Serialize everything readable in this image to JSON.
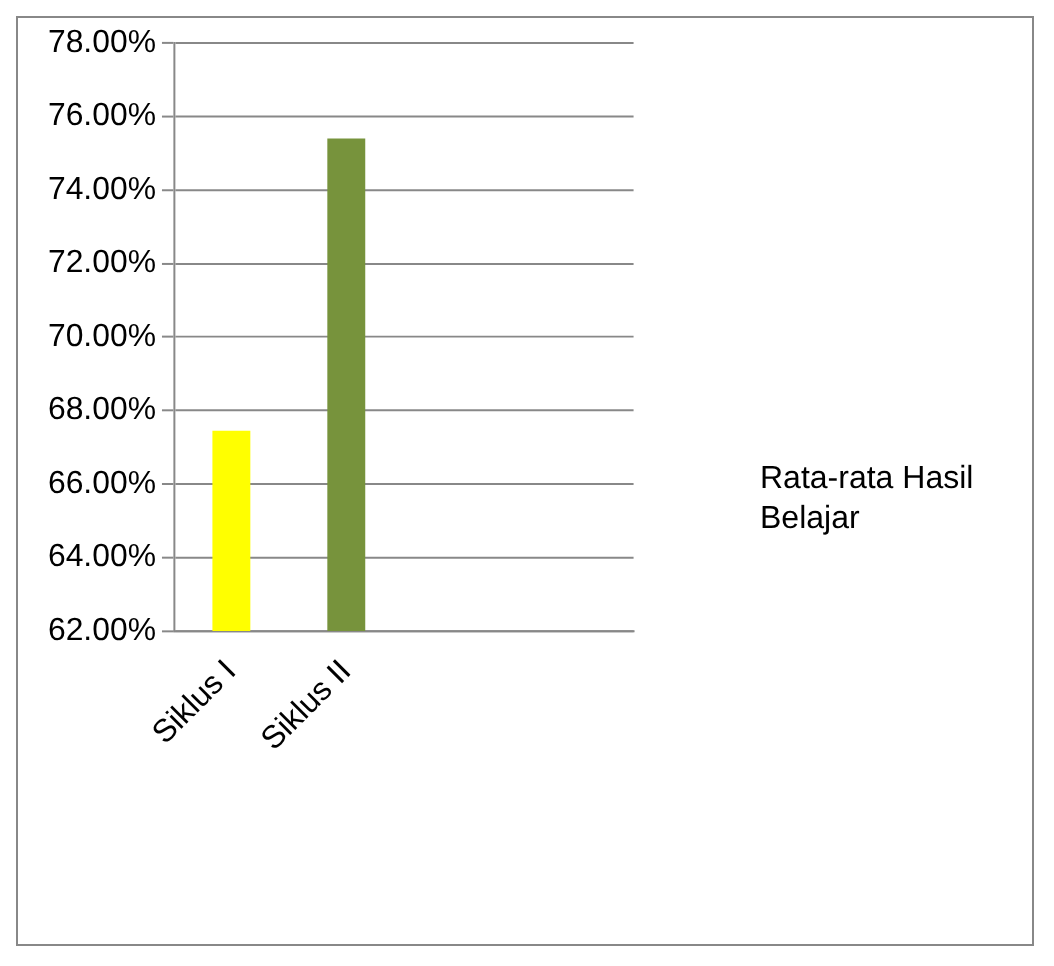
{
  "chart_data": {
    "type": "bar",
    "categories": [
      "Siklus I",
      "Siklus II",
      null,
      null
    ],
    "series": [
      {
        "name": "Rata-rata Hasil Belajar",
        "colors": [
          "#ffff00",
          "#77933c",
          null,
          null
        ],
        "values": [
          67.45,
          75.4,
          null,
          null
        ]
      }
    ],
    "ylim": [
      62,
      78
    ],
    "yticks": [
      {
        "value": 62,
        "label": "62.00%"
      },
      {
        "value": 64,
        "label": "64.00%"
      },
      {
        "value": 66,
        "label": "66.00%"
      },
      {
        "value": 68,
        "label": "68.00%"
      },
      {
        "value": 70,
        "label": "70.00%"
      },
      {
        "value": 72,
        "label": "72.00%"
      },
      {
        "value": 74,
        "label": "74.00%"
      },
      {
        "value": 76,
        "label": "76.00%"
      },
      {
        "value": 78,
        "label": "78.00%"
      }
    ],
    "grid": "y",
    "legend": "right"
  }
}
